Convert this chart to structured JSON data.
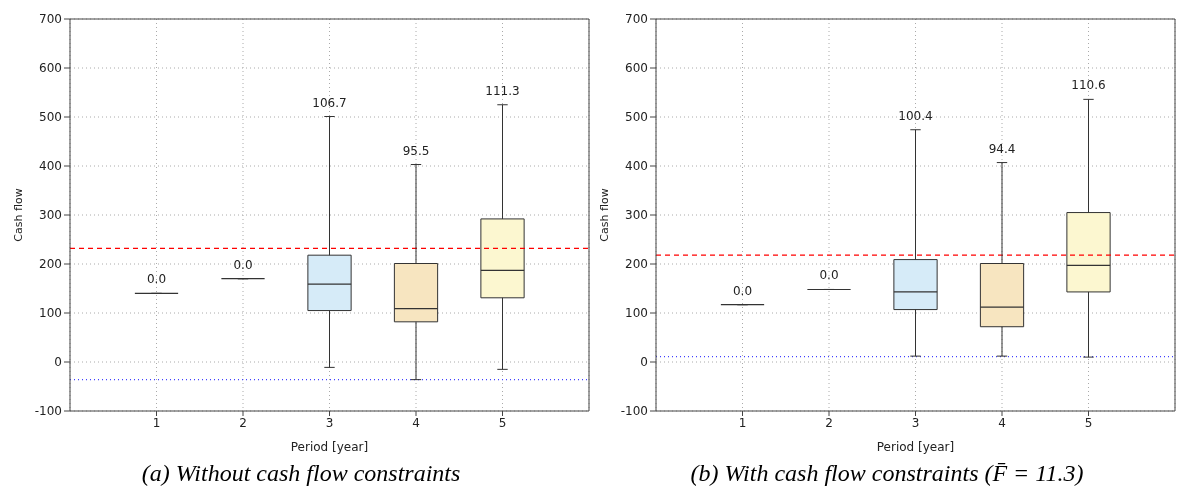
{
  "chart_data": [
    {
      "type": "box",
      "title": "(a) Without cash flow constraints",
      "xlabel": "Period [year]",
      "ylabel": "Cash flow",
      "categories": [
        "1",
        "2",
        "3",
        "4",
        "5"
      ],
      "boxes": [
        {
          "low": 140,
          "q1": 140,
          "median": 140,
          "q3": 140,
          "high": 140
        },
        {
          "low": 170,
          "q1": 170,
          "median": 170,
          "q3": 170,
          "high": 170
        },
        {
          "low": -11,
          "q1": 105,
          "median": 159,
          "q3": 218,
          "high": 501
        },
        {
          "low": -36,
          "q1": 82,
          "median": 109,
          "q3": 201,
          "high": 403
        },
        {
          "low": -15,
          "q1": 131,
          "median": 187,
          "q3": 292,
          "high": 525
        }
      ],
      "colors": [
        "#333333",
        "#333333",
        "#d6ebf8",
        "#f7e5c0",
        "#fcf7d0"
      ],
      "ylim": [
        -100,
        700
      ],
      "yticks": [
        -100,
        0,
        100,
        200,
        300,
        400,
        500,
        600,
        700
      ],
      "grid": true,
      "annotations": [
        {
          "text": "0.0",
          "x": "1",
          "y": 140
        },
        {
          "text": "0.0",
          "x": "2",
          "y": 170
        },
        {
          "text": "106.7",
          "x": "3",
          "y": 501
        },
        {
          "text": "95.5",
          "x": "4",
          "y": 403
        },
        {
          "text": "111.3",
          "x": "5",
          "y": 525
        }
      ],
      "ref_lines": [
        {
          "axis": "y",
          "value": 232,
          "color": "#ff0000",
          "line_style": "dashed"
        },
        {
          "axis": "y",
          "value": -36,
          "color": "#4040ff",
          "line_style": "dotted"
        }
      ]
    },
    {
      "type": "box",
      "title": "(b) With cash flow constraints (F̄ = 11.3)",
      "xlabel": "Period [year]",
      "ylabel": "Cash flow",
      "categories": [
        "1",
        "2",
        "3",
        "4",
        "5"
      ],
      "boxes": [
        {
          "low": 117,
          "q1": 117,
          "median": 117,
          "q3": 117,
          "high": 117
        },
        {
          "low": 148,
          "q1": 148,
          "median": 148,
          "q3": 148,
          "high": 148
        },
        {
          "low": 12,
          "q1": 107,
          "median": 143,
          "q3": 209,
          "high": 474
        },
        {
          "low": 12,
          "q1": 72,
          "median": 112,
          "q3": 201,
          "high": 407
        },
        {
          "low": 10,
          "q1": 143,
          "median": 197,
          "q3": 305,
          "high": 536
        }
      ],
      "colors": [
        "#333333",
        "#333333",
        "#d6ebf8",
        "#f7e5c0",
        "#fcf7d0"
      ],
      "ylim": [
        -100,
        700
      ],
      "yticks": [
        -100,
        0,
        100,
        200,
        300,
        400,
        500,
        600,
        700
      ],
      "grid": true,
      "annotations": [
        {
          "text": "0.0",
          "x": "1",
          "y": 117
        },
        {
          "text": "0.0",
          "x": "2",
          "y": 148
        },
        {
          "text": "100.4",
          "x": "3",
          "y": 474
        },
        {
          "text": "94.4",
          "x": "4",
          "y": 407
        },
        {
          "text": "110.6",
          "x": "5",
          "y": 536
        }
      ],
      "ref_lines": [
        {
          "axis": "y",
          "value": 218,
          "color": "#ff0000",
          "line_style": "dashed"
        },
        {
          "axis": "y",
          "value": 11,
          "color": "#4040ff",
          "line_style": "dotted"
        }
      ]
    }
  ]
}
